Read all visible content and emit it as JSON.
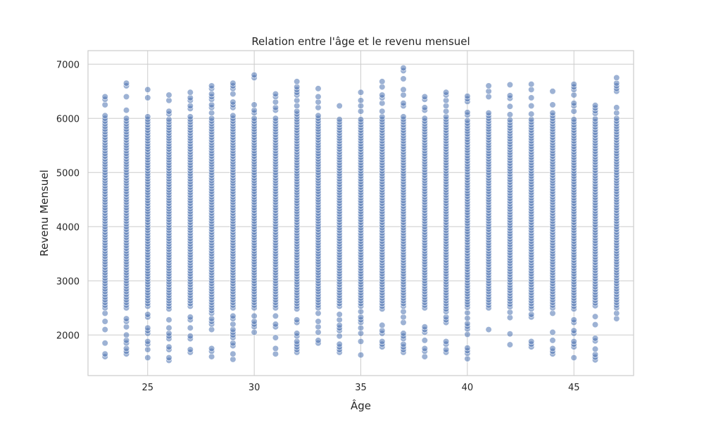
{
  "chart_data": {
    "type": "scatter",
    "title": "Relation entre l'âge et le revenu mensuel",
    "xlabel": "Âge",
    "ylabel": "Revenu Mensuel",
    "xlim": [
      22.2,
      47.8
    ],
    "ylim": [
      1250,
      7250
    ],
    "x_ticks": [
      25,
      30,
      35,
      40,
      45
    ],
    "y_ticks": [
      2000,
      3000,
      4000,
      5000,
      6000,
      7000
    ],
    "grid": true,
    "marker_color": "#4c72b0",
    "marker_alpha": 0.55,
    "x_ages": [
      23,
      24,
      25,
      26,
      27,
      28,
      29,
      30,
      31,
      32,
      33,
      34,
      35,
      36,
      37,
      38,
      39,
      40,
      41,
      42,
      43,
      44,
      45,
      46,
      47
    ],
    "y_ranges": [
      [
        1600,
        6400
      ],
      [
        1650,
        6860
      ],
      [
        1580,
        6600
      ],
      [
        1530,
        6460
      ],
      [
        1680,
        6480
      ],
      [
        1600,
        6620
      ],
      [
        1550,
        6740
      ],
      [
        2050,
        6800
      ],
      [
        1650,
        6450
      ],
      [
        1680,
        6700
      ],
      [
        1850,
        6550
      ],
      [
        1680,
        6500
      ],
      [
        1630,
        6520
      ],
      [
        1780,
        6680
      ],
      [
        1680,
        6970
      ],
      [
        1600,
        6440
      ],
      [
        1680,
        6720
      ],
      [
        1560,
        6450
      ],
      [
        2100,
        6600
      ],
      [
        1820,
        6620
      ],
      [
        1780,
        6660
      ],
      [
        1650,
        6500
      ],
      [
        1580,
        6690
      ],
      [
        1540,
        6460
      ],
      [
        2300,
        6750
      ]
    ],
    "y_step": 50
  },
  "colors": {
    "background": "#ffffff",
    "grid": "#cccccc",
    "frame": "#cccccc",
    "text": "#262626"
  }
}
